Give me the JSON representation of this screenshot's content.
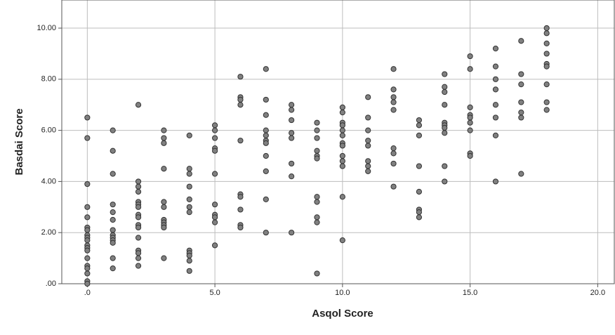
{
  "chart_data": {
    "type": "scatter",
    "x_label": "Asqol Score",
    "y_label": "Basdai Score",
    "color": "#808080",
    "edge_color": "#333333",
    "grid": true,
    "xlim": [
      -1,
      20.65
    ],
    "ylim": [
      0,
      11.1
    ],
    "xticks": [
      {
        "value": 0,
        "label": ".0"
      },
      {
        "value": 5,
        "label": "5.0"
      },
      {
        "value": 10,
        "label": "10.0"
      },
      {
        "value": 15,
        "label": "15.0"
      },
      {
        "value": 20,
        "label": "20.0"
      }
    ],
    "yticks": [
      {
        "value": 0,
        "label": ".00"
      },
      {
        "value": 2,
        "label": "2.00"
      },
      {
        "value": 4,
        "label": "4.00"
      },
      {
        "value": 6,
        "label": "6.00"
      },
      {
        "value": 8,
        "label": "8.00"
      },
      {
        "value": 10,
        "label": "10.00"
      }
    ],
    "x": [
      0,
      0,
      0,
      0,
      0,
      0,
      0,
      0,
      0,
      0,
      0,
      0,
      0,
      0,
      0,
      0,
      0,
      0,
      0,
      1,
      1,
      1,
      1,
      1,
      1,
      1,
      1,
      1,
      1,
      1,
      1,
      1,
      2,
      2,
      2,
      2,
      2,
      2,
      2,
      2,
      2,
      2,
      2,
      2,
      2,
      2,
      2,
      2,
      3,
      3,
      3,
      3,
      3,
      3,
      3,
      3,
      3,
      3,
      3,
      4,
      4,
      4,
      4,
      4,
      4,
      4,
      4,
      4,
      4,
      4,
      4,
      5,
      5,
      5,
      5,
      5,
      5,
      5,
      5,
      5,
      5,
      5,
      6,
      6,
      6,
      6,
      6,
      6,
      6,
      6,
      6,
      6,
      7,
      7,
      7,
      7,
      7,
      7,
      7,
      7,
      7,
      7,
      7,
      8,
      8,
      8,
      8,
      8,
      8,
      8,
      8,
      9,
      9,
      9,
      9,
      9,
      9,
      9,
      9,
      9,
      9,
      9,
      10,
      10,
      10,
      10,
      10,
      10,
      10,
      10,
      10,
      10,
      10,
      10,
      10,
      11,
      11,
      11,
      11,
      11,
      11,
      11,
      11,
      12,
      12,
      12,
      12,
      12,
      12,
      12,
      12,
      12,
      13,
      13,
      13,
      13,
      13,
      13,
      13,
      13,
      14,
      14,
      14,
      14,
      14,
      14,
      14,
      14,
      14,
      14,
      15,
      15,
      15,
      15,
      15,
      15,
      15,
      15,
      15,
      16,
      16,
      16,
      16,
      16,
      16,
      16,
      16,
      17,
      17,
      17,
      17,
      17,
      17,
      17,
      18,
      18,
      18,
      18,
      18,
      18,
      18,
      18,
      18
    ],
    "values": [
      6.5,
      5.7,
      3.9,
      3.0,
      2.6,
      2.2,
      2.1,
      1.9,
      1.8,
      1.7,
      1.5,
      1.4,
      1.3,
      1.0,
      0.7,
      0.6,
      0.4,
      0.1,
      0.0,
      6.0,
      5.2,
      4.3,
      3.1,
      2.8,
      2.5,
      2.1,
      1.9,
      1.8,
      1.7,
      1.6,
      1.0,
      0.6,
      7.0,
      4.0,
      3.8,
      3.6,
      3.2,
      3.1,
      3.0,
      2.7,
      2.6,
      2.3,
      2.2,
      1.8,
      1.3,
      1.2,
      1.0,
      0.7,
      6.0,
      5.7,
      5.5,
      4.5,
      3.2,
      3.0,
      2.5,
      2.4,
      2.3,
      2.2,
      1.0,
      5.8,
      4.5,
      4.3,
      3.8,
      3.3,
      3.0,
      2.8,
      1.3,
      1.2,
      1.1,
      0.9,
      0.5,
      6.2,
      6.0,
      5.7,
      5.3,
      5.2,
      4.3,
      3.1,
      2.7,
      2.6,
      2.4,
      1.5,
      8.1,
      7.3,
      7.2,
      7.0,
      5.6,
      3.5,
      3.4,
      2.9,
      2.3,
      2.2,
      8.4,
      7.2,
      6.6,
      6.0,
      5.8,
      5.6,
      5.5,
      5.0,
      4.4,
      3.3,
      2.0,
      7.0,
      6.8,
      6.4,
      5.9,
      5.7,
      4.7,
      4.2,
      2.0,
      6.3,
      6.0,
      5.7,
      5.2,
      5.0,
      4.9,
      3.4,
      3.2,
      2.6,
      2.4,
      0.4,
      6.9,
      6.7,
      6.3,
      6.2,
      6.0,
      5.8,
      5.5,
      5.4,
      5.0,
      4.8,
      4.6,
      3.4,
      1.7,
      7.3,
      6.5,
      6.0,
      5.6,
      5.4,
      4.8,
      4.6,
      4.4,
      8.4,
      7.6,
      7.3,
      7.1,
      6.8,
      5.3,
      5.1,
      4.7,
      3.8,
      6.4,
      6.2,
      5.8,
      4.6,
      3.6,
      2.9,
      2.8,
      2.6,
      8.2,
      7.7,
      7.5,
      7.0,
      6.3,
      6.2,
      6.1,
      5.9,
      4.6,
      4.0,
      8.9,
      8.4,
      6.9,
      6.6,
      6.5,
      6.3,
      6.0,
      5.1,
      5.0,
      9.2,
      8.5,
      8.0,
      7.6,
      7.0,
      6.5,
      5.8,
      4.0,
      9.5,
      8.2,
      7.8,
      7.1,
      6.7,
      6.5,
      4.3,
      10.0,
      9.8,
      9.4,
      9.0,
      8.6,
      8.5,
      7.8,
      7.1,
      6.8
    ]
  }
}
